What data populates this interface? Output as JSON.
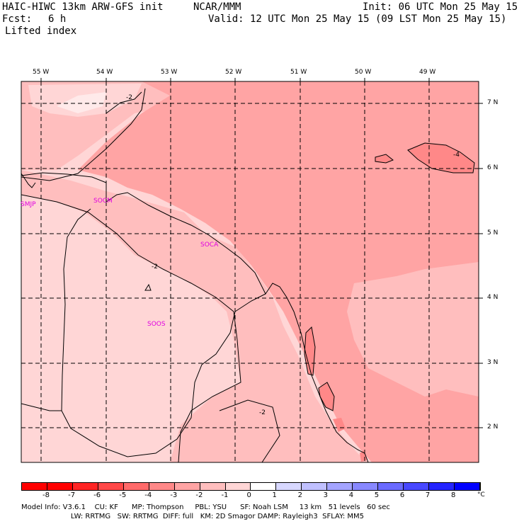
{
  "header": {
    "model_title": "HAIC-HIWC 13km ARW-GFS init",
    "org": "NCAR/MMM",
    "init": "Init: 06 UTC Mon 25 May 15",
    "fcst_label": "Fcst:",
    "fcst_value": "6 h",
    "valid": "Valid: 12 UTC Mon 25 May 15 (09 LST Mon 25 May 15)",
    "field": "Lifted index"
  },
  "map": {
    "lon_labels": [
      "55 W",
      "54 W",
      "53 W",
      "52 W",
      "51 W",
      "50 W",
      "49 W"
    ],
    "lat_labels": [
      "7 N",
      "6 N",
      "5 N",
      "4 N",
      "3 N",
      "2 N"
    ],
    "stations": [
      "SMJP",
      "SOCM",
      "SOCA",
      "SOOS"
    ],
    "contour_labels": [
      "-2",
      "-2",
      "-2",
      "-4"
    ]
  },
  "colorbar": {
    "ticks": [
      "-8",
      "-7",
      "-6",
      "-5",
      "-4",
      "-3",
      "-2",
      "-1",
      "0",
      "1",
      "2",
      "3",
      "4",
      "5",
      "6",
      "7",
      "8"
    ],
    "unit": "°C",
    "colors": [
      "#ff0000",
      "#ff2424",
      "#ff4848",
      "#ff6a6a",
      "#ff8888",
      "#ffa4a4",
      "#ffbebe",
      "#ffd6d6",
      "#ffffff",
      "#d8d8ff",
      "#c0c0ff",
      "#a4a4ff",
      "#8888ff",
      "#6a6aff",
      "#4848ff",
      "#2424ff",
      "#0000ff"
    ]
  },
  "footer": {
    "line1": "Model Info: V3.6.1    CU: KF      MP: Thompson     PBL: YSU      SF: Noah LSM     13 km   51 levels   60 sec",
    "line2": "                      LW: RRTMG   SW: RRTMG  DIFF: full   KM: 2D Smagor DAMP: Rayleigh3  SFLAY: MM5"
  }
}
